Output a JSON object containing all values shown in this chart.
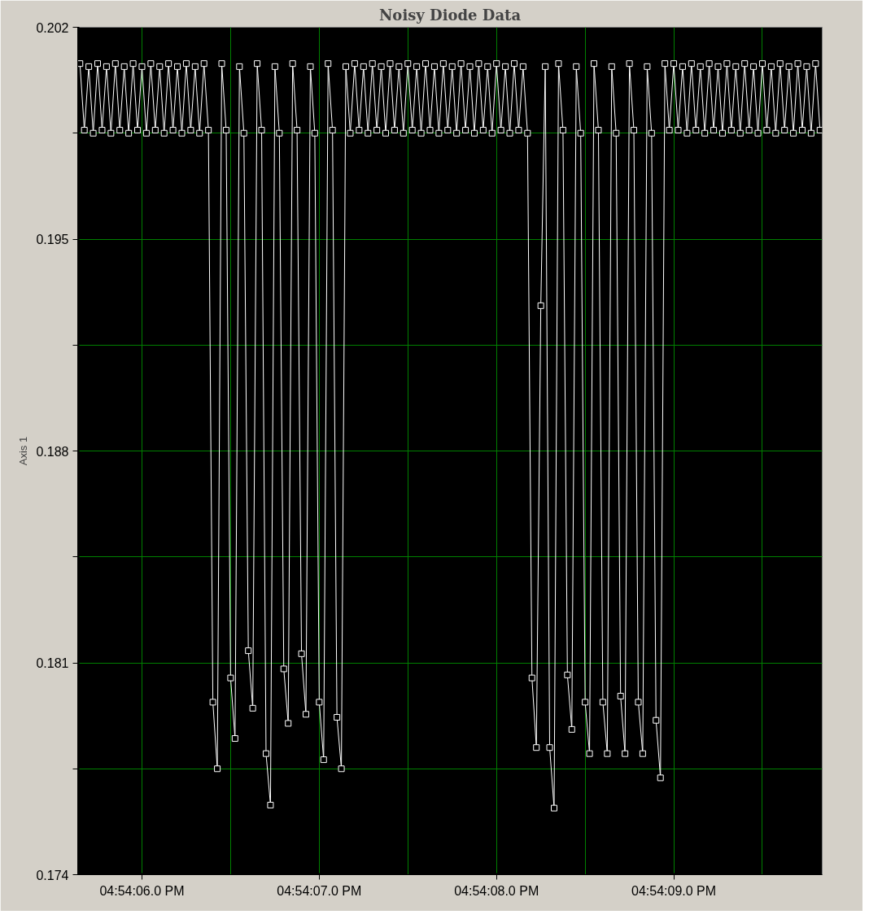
{
  "chart_data": {
    "type": "line",
    "title": "Noisy Diode Data",
    "ylabel": "Axis 1",
    "categories": [
      null,
      null,
      null,
      null,
      null,
      null,
      null,
      null,
      null,
      null,
      null,
      null,
      null,
      null,
      "04:54:06.0 PM",
      null,
      null,
      null,
      null,
      null,
      null,
      null,
      null,
      null,
      null,
      null,
      null,
      null,
      null,
      null,
      null,
      null,
      null,
      null,
      null,
      null,
      null,
      null,
      null,
      null,
      null,
      null,
      null,
      null,
      null,
      null,
      null,
      null,
      null,
      null,
      null,
      null,
      null,
      null,
      "04:54:07.0 PM",
      null,
      null,
      null,
      null,
      null,
      null,
      null,
      null,
      null,
      null,
      null,
      null,
      null,
      null,
      null,
      null,
      null,
      null,
      null,
      null,
      null,
      null,
      null,
      null,
      null,
      null,
      null,
      null,
      null,
      null,
      null,
      null,
      null,
      null,
      null,
      null,
      null,
      null,
      null,
      "04:54:08.0 PM",
      null,
      null,
      null,
      null,
      null,
      null,
      null,
      null,
      null,
      null,
      null,
      null,
      null,
      null,
      null,
      null,
      null,
      null,
      null,
      null,
      null,
      null,
      null,
      null,
      null,
      null,
      null,
      null,
      null,
      null,
      null,
      null,
      null,
      null,
      null,
      null,
      null,
      null,
      null,
      "04:54:09.0 PM",
      null,
      null,
      null,
      null,
      null,
      null,
      null,
      null,
      null,
      null,
      null,
      null,
      null,
      null,
      null,
      null,
      null,
      null,
      null,
      null,
      null,
      null,
      null,
      null,
      null,
      null,
      null,
      null,
      null,
      null,
      null,
      null,
      null
    ],
    "ylim": [
      0.174,
      0.202
    ],
    "yticks": [
      0.174,
      {
        "value": 0.1775,
        "label": null
      },
      0.181,
      {
        "value": 0.1845,
        "label": null
      },
      0.188,
      {
        "value": 0.1915,
        "label": null
      },
      0.195,
      {
        "value": 0.1985,
        "label": null
      },
      0.202
    ],
    "grid": true,
    "marker": "square",
    "series": [
      {
        "color": "#ffffff",
        "values": [
          0.2008,
          0.1986,
          0.2007,
          0.1985,
          0.2008,
          0.1986,
          0.2007,
          0.1985,
          0.2008,
          0.1986,
          0.2007,
          0.1985,
          0.2008,
          0.1986,
          0.2007,
          0.1985,
          0.2008,
          0.1986,
          0.2007,
          0.1985,
          0.2008,
          0.1986,
          0.2007,
          0.1985,
          0.2008,
          0.1986,
          0.2007,
          0.1985,
          0.2008,
          0.1986,
          0.1797,
          0.1775,
          0.2008,
          0.1986,
          0.1805,
          0.1785,
          0.2007,
          0.1985,
          0.1814,
          0.1795,
          0.2008,
          0.1986,
          0.178,
          0.1763,
          0.2007,
          0.1985,
          0.1808,
          0.179,
          0.2008,
          0.1986,
          0.1813,
          0.1793,
          0.2007,
          0.1985,
          0.1797,
          0.1778,
          0.2008,
          0.1986,
          0.1792,
          0.1775,
          0.2007,
          0.1985,
          0.2008,
          0.1986,
          0.2007,
          0.1985,
          0.2008,
          0.1986,
          0.2007,
          0.1985,
          0.2008,
          0.1986,
          0.2007,
          0.1985,
          0.2008,
          0.1986,
          0.2007,
          0.1985,
          0.2008,
          0.1986,
          0.2007,
          0.1985,
          0.2008,
          0.1986,
          0.2007,
          0.1985,
          0.2008,
          0.1986,
          0.2007,
          0.1985,
          0.2008,
          0.1986,
          0.2007,
          0.1985,
          0.2008,
          0.1986,
          0.2007,
          0.1985,
          0.2008,
          0.1986,
          0.2007,
          0.1985,
          0.1805,
          0.1782,
          0.1928,
          0.2007,
          0.1782,
          0.1762,
          0.2008,
          0.1986,
          0.1806,
          0.1788,
          0.2007,
          0.1985,
          0.1797,
          0.178,
          0.2008,
          0.1986,
          0.1797,
          0.178,
          0.2007,
          0.1985,
          0.1799,
          0.178,
          0.2008,
          0.1986,
          0.1797,
          0.178,
          0.2007,
          0.1985,
          0.1791,
          0.1772,
          0.2008,
          0.1986,
          0.2008,
          0.1986,
          0.2007,
          0.1985,
          0.2008,
          0.1986,
          0.2007,
          0.1985,
          0.2008,
          0.1986,
          0.2007,
          0.1985,
          0.2008,
          0.1986,
          0.2007,
          0.1985,
          0.2008,
          0.1986,
          0.2007,
          0.1985,
          0.2008,
          0.1986,
          0.2007,
          0.1985,
          0.2008,
          0.1986,
          0.2007,
          0.1985,
          0.2008,
          0.1986,
          0.2007,
          0.1985,
          0.2008,
          0.1986
        ]
      }
    ]
  }
}
